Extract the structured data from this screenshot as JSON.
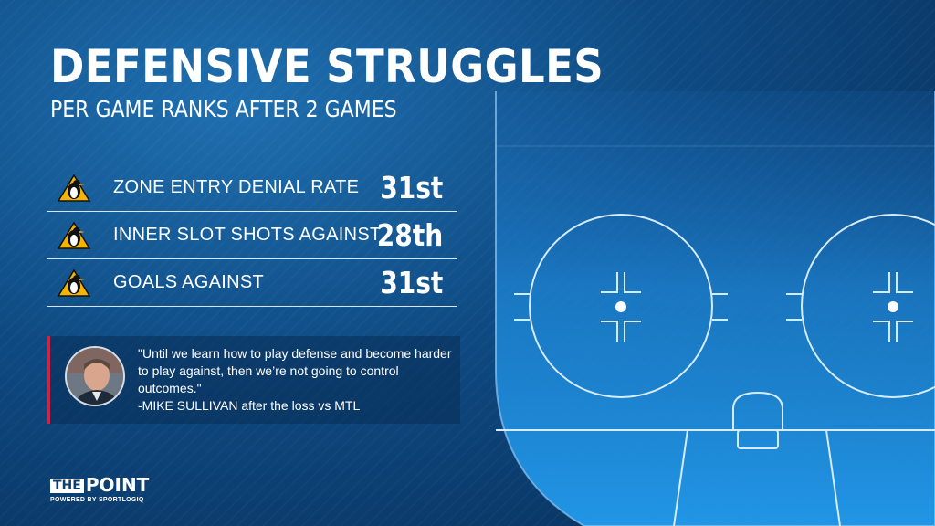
{
  "header": {
    "title": "DEFENSIVE STRUGGLES",
    "subtitle": "PER GAME RANKS AFTER 2 GAMES"
  },
  "stats": [
    {
      "label": "ZONE ENTRY DENIAL RATE",
      "rank": "31st",
      "icon": "penguins-logo-icon"
    },
    {
      "label": "INNER SLOT SHOTS AGAINST",
      "rank": "28th",
      "icon": "penguins-logo-icon"
    },
    {
      "label": "GOALS AGAINST",
      "rank": "31st",
      "icon": "penguins-logo-icon"
    }
  ],
  "quote": {
    "text": "\"Until we learn how to play defense and become harder to play against, then we’re not going to control outcomes.\"",
    "attribution": "-MIKE SULLIVAN after the loss vs MTL"
  },
  "brand": {
    "the": "THE",
    "name": "POINT",
    "powered_by": "POWERED BY SPORTLOGIQ"
  },
  "colors": {
    "background": "#0e4a82",
    "rink_fill": "#1e8fe0",
    "rink_line": "#cfe7fb",
    "quote_accent": "#c8264a",
    "penguins_gold": "#f5b400"
  }
}
